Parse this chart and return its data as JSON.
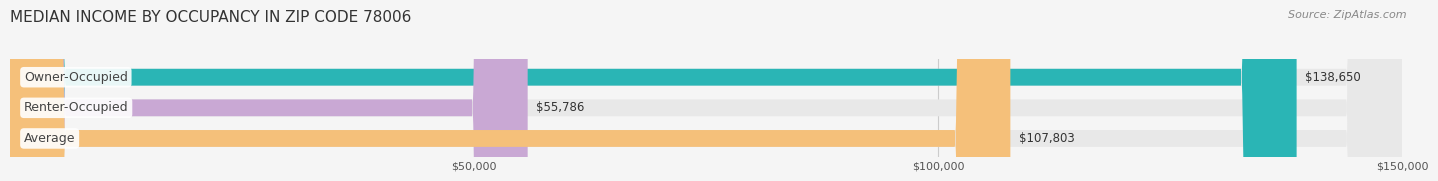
{
  "title": "MEDIAN INCOME BY OCCUPANCY IN ZIP CODE 78006",
  "source": "Source: ZipAtlas.com",
  "categories": [
    "Owner-Occupied",
    "Renter-Occupied",
    "Average"
  ],
  "values": [
    138650,
    55786,
    107803
  ],
  "bar_colors": [
    "#2ab5b5",
    "#c9a8d4",
    "#f5c07a"
  ],
  "value_labels": [
    "$138,650",
    "$55,786",
    "$107,803"
  ],
  "xlim": [
    0,
    150000
  ],
  "xtick_vals": [
    50000,
    100000,
    150000
  ],
  "xtick_labels": [
    "$50,000",
    "$100,000",
    "$150,000"
  ],
  "background_color": "#f5f5f5",
  "bar_background_color": "#e8e8e8",
  "bar_height": 0.55,
  "title_fontsize": 11,
  "source_fontsize": 8,
  "label_fontsize": 9,
  "value_fontsize": 8.5
}
